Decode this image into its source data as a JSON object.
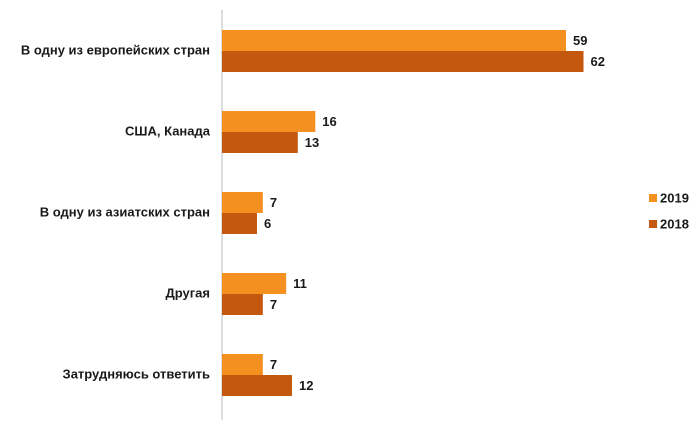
{
  "chart_data": {
    "type": "hbar",
    "categories": [
      "В одну из европейских стран",
      "США, Канада",
      "В одну из азиатских стран",
      "Другая",
      "Затрудняюсь ответить"
    ],
    "series": [
      {
        "name": "2019",
        "color": "#f39020",
        "values": [
          59,
          16,
          7,
          11,
          7
        ]
      },
      {
        "name": "2018",
        "color": "#c5580f",
        "values": [
          62,
          13,
          6,
          7,
          12
        ]
      }
    ],
    "xlim": [
      0,
      65
    ],
    "legend": "right"
  }
}
